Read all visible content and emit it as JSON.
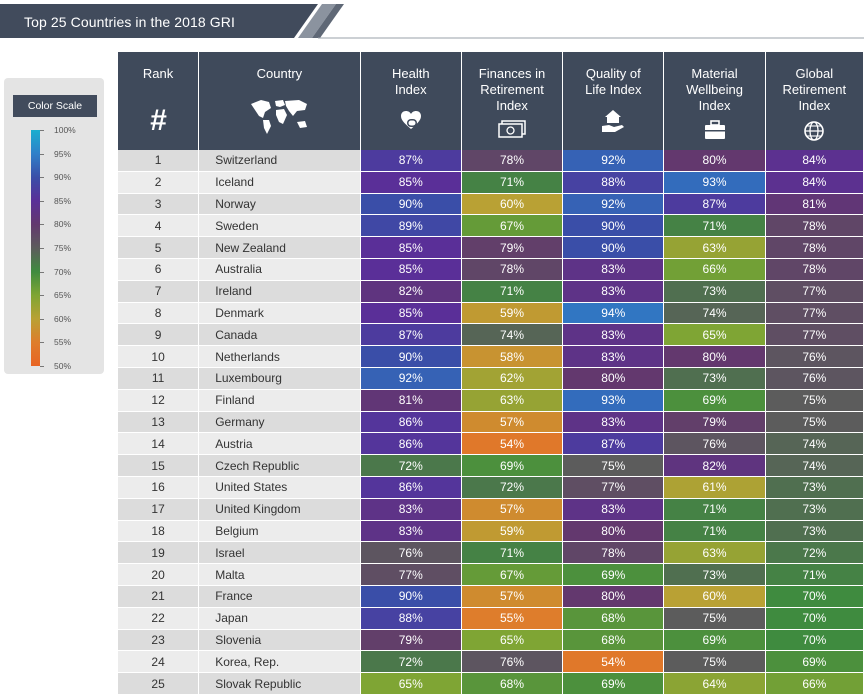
{
  "title": "Top 25 Countries in the 2018 GRI",
  "legend": {
    "title": "Color Scale",
    "labels": [
      "100%",
      "95%",
      "90%",
      "85%",
      "80%",
      "75%",
      "70%",
      "65%",
      "60%",
      "55%",
      "50%"
    ]
  },
  "headers": {
    "rank": "Rank",
    "rank_symbol": "#",
    "country": "Country",
    "health": [
      "Health",
      "Index"
    ],
    "finances": [
      "Finances in",
      "Retirement",
      "Index"
    ],
    "quality": [
      "Quality of",
      "Life Index"
    ],
    "material": [
      "Material",
      "Wellbeing",
      "Index"
    ],
    "global": [
      "Global",
      "Retirement",
      "Index"
    ]
  },
  "icons": {
    "title_bar": "title-banner",
    "country": "world-map-icon",
    "health": "health-heart-pill-icon",
    "finances": "money-stack-icon",
    "quality": "hand-house-icon",
    "material": "briefcase-icon",
    "global": "globe-icon"
  },
  "chart_data": {
    "type": "table",
    "title": "Top 25 Countries in the 2018 GRI",
    "columns": [
      "Rank",
      "Country",
      "Health Index",
      "Finances in Retirement Index",
      "Quality of Life Index",
      "Material Wellbeing Index",
      "Global Retirement Index"
    ],
    "rows": [
      {
        "rank": 1,
        "country": "Switzerland",
        "health": 87,
        "finances": 78,
        "quality": 92,
        "material": 80,
        "global": 84
      },
      {
        "rank": 2,
        "country": "Iceland",
        "health": 85,
        "finances": 71,
        "quality": 88,
        "material": 93,
        "global": 84
      },
      {
        "rank": 3,
        "country": "Norway",
        "health": 90,
        "finances": 60,
        "quality": 92,
        "material": 87,
        "global": 81
      },
      {
        "rank": 4,
        "country": "Sweden",
        "health": 89,
        "finances": 67,
        "quality": 90,
        "material": 71,
        "global": 78
      },
      {
        "rank": 5,
        "country": "New Zealand",
        "health": 85,
        "finances": 79,
        "quality": 90,
        "material": 63,
        "global": 78
      },
      {
        "rank": 6,
        "country": "Australia",
        "health": 85,
        "finances": 78,
        "quality": 83,
        "material": 66,
        "global": 78
      },
      {
        "rank": 7,
        "country": "Ireland",
        "health": 82,
        "finances": 71,
        "quality": 83,
        "material": 73,
        "global": 77
      },
      {
        "rank": 8,
        "country": "Denmark",
        "health": 85,
        "finances": 59,
        "quality": 94,
        "material": 74,
        "global": 77
      },
      {
        "rank": 9,
        "country": "Canada",
        "health": 87,
        "finances": 74,
        "quality": 83,
        "material": 65,
        "global": 77
      },
      {
        "rank": 10,
        "country": "Netherlands",
        "health": 90,
        "finances": 58,
        "quality": 83,
        "material": 80,
        "global": 76
      },
      {
        "rank": 11,
        "country": "Luxembourg",
        "health": 92,
        "finances": 62,
        "quality": 80,
        "material": 73,
        "global": 76
      },
      {
        "rank": 12,
        "country": "Finland",
        "health": 81,
        "finances": 63,
        "quality": 93,
        "material": 69,
        "global": 75
      },
      {
        "rank": 13,
        "country": "Germany",
        "health": 86,
        "finances": 57,
        "quality": 83,
        "material": 79,
        "global": 75
      },
      {
        "rank": 14,
        "country": "Austria",
        "health": 86,
        "finances": 54,
        "quality": 87,
        "material": 76,
        "global": 74
      },
      {
        "rank": 15,
        "country": "Czech Republic",
        "health": 72,
        "finances": 69,
        "quality": 75,
        "material": 82,
        "global": 74
      },
      {
        "rank": 16,
        "country": "United States",
        "health": 86,
        "finances": 72,
        "quality": 77,
        "material": 61,
        "global": 73
      },
      {
        "rank": 17,
        "country": "United Kingdom",
        "health": 83,
        "finances": 57,
        "quality": 83,
        "material": 71,
        "global": 73
      },
      {
        "rank": 18,
        "country": "Belgium",
        "health": 83,
        "finances": 59,
        "quality": 80,
        "material": 71,
        "global": 73
      },
      {
        "rank": 19,
        "country": "Israel",
        "health": 76,
        "finances": 71,
        "quality": 78,
        "material": 63,
        "global": 72
      },
      {
        "rank": 20,
        "country": "Malta",
        "health": 77,
        "finances": 67,
        "quality": 69,
        "material": 73,
        "global": 71
      },
      {
        "rank": 21,
        "country": "France",
        "health": 90,
        "finances": 57,
        "quality": 80,
        "material": 60,
        "global": 70
      },
      {
        "rank": 22,
        "country": "Japan",
        "health": 88,
        "finances": 55,
        "quality": 68,
        "material": 75,
        "global": 70
      },
      {
        "rank": 23,
        "country": "Slovenia",
        "health": 79,
        "finances": 65,
        "quality": 68,
        "material": 69,
        "global": 70
      },
      {
        "rank": 24,
        "country": "Korea, Rep.",
        "health": 72,
        "finances": 76,
        "quality": 54,
        "material": 75,
        "global": 69
      },
      {
        "rank": 25,
        "country": "Slovak Republic",
        "health": 65,
        "finances": 68,
        "quality": 69,
        "material": 64,
        "global": 66
      }
    ]
  }
}
